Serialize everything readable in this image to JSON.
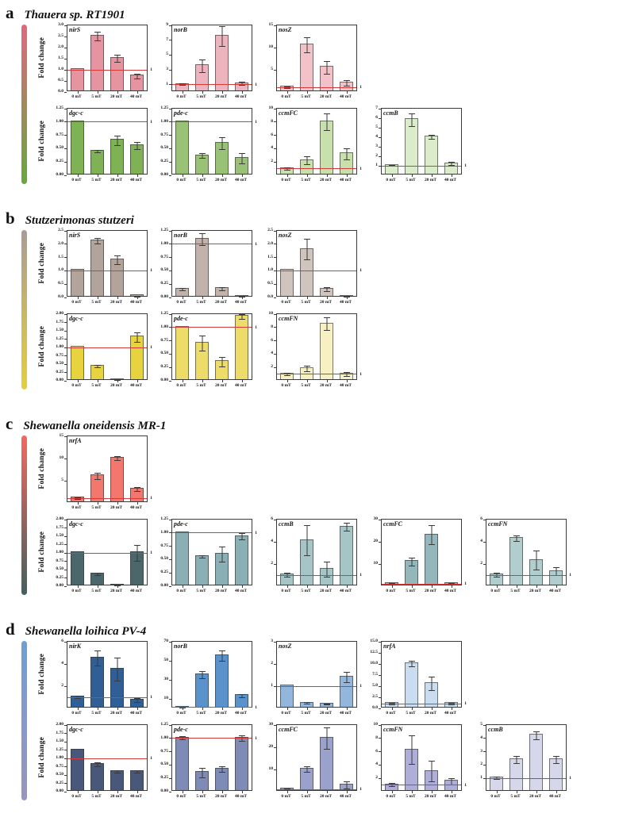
{
  "figure": {
    "ylabel": "Fold change",
    "xticks": [
      "0 mT",
      "5 mT",
      "20 mT",
      "40 mT"
    ],
    "ref_line_value": 1,
    "ref_line_label": "1",
    "ref_line_color": "#d43c3c",
    "background": "#ffffff"
  },
  "panels": [
    {
      "id": "a",
      "letter": "a",
      "title": "Thauera sp. RT1901",
      "gradient_top": "#e0687e",
      "gradient_bottom": "#66a93c"
    },
    {
      "id": "b",
      "letter": "b",
      "title": "Stutzerimonas stutzeri",
      "gradient_top": "#ab9c94",
      "gradient_bottom": "#e6cf3a"
    },
    {
      "id": "c",
      "letter": "c",
      "title": "Shewanella oneidensis MR-1",
      "gradient_top": "#f4685e",
      "gradient_bottom": "#42605f"
    },
    {
      "id": "d",
      "letter": "d",
      "title": "Shewanella loihica PV-4",
      "gradient_top": "#6f9fd4",
      "gradient_bottom": "#9995bf"
    }
  ],
  "chart_data": {
    "type": "bar",
    "categories": [
      "0 mT",
      "5 mT",
      "20 mT",
      "40 mT"
    ],
    "ylabel": "Fold change",
    "reference_line": 1,
    "charts": [
      {
        "panel": "a",
        "row": 0,
        "gene": "nirS",
        "ylim": [
          0,
          3
        ],
        "yticks": [
          "0.0",
          "0.5",
          "1.0",
          "1.5",
          "2.0",
          "2.5",
          "3.0"
        ],
        "values": [
          1.0,
          2.5,
          1.5,
          0.7
        ],
        "errors": [
          0,
          0.2,
          0.18,
          0.12
        ],
        "color": "#e695a0",
        "ylabel": true
      },
      {
        "panel": "a",
        "row": 0,
        "gene": "norB",
        "ylim": [
          0,
          9
        ],
        "yticks": [
          "1",
          "3",
          "5",
          "7",
          "9"
        ],
        "values": [
          1,
          3.5,
          7.5,
          1.1
        ],
        "errors": [
          0.15,
          0.9,
          1.4,
          0.25
        ],
        "color": "#eeb4bd"
      },
      {
        "panel": "a",
        "row": 0,
        "gene": "nosZ",
        "ylim": [
          0,
          15
        ],
        "yticks": [
          "5",
          "10",
          "15"
        ],
        "values": [
          1,
          10.5,
          5.5,
          2
        ],
        "errors": [
          0.2,
          1.8,
          1.5,
          0.7
        ],
        "color": "#f3c2c9"
      },
      {
        "panel": "a",
        "row": 1,
        "gene": "dgc-c",
        "ylim": [
          0,
          1.25
        ],
        "yticks": [
          "0.00",
          "0.25",
          "0.50",
          "0.75",
          "1.00",
          "1.25"
        ],
        "values": [
          1.0,
          0.44,
          0.65,
          0.55
        ],
        "errors": [
          0,
          0.03,
          0.1,
          0.07
        ],
        "color": "#7eb254",
        "ylabel": true
      },
      {
        "panel": "a",
        "row": 1,
        "gene": "pde-c",
        "ylim": [
          0,
          1.25
        ],
        "yticks": [
          "0.00",
          "0.25",
          "0.50",
          "0.75",
          "1.00",
          "1.25"
        ],
        "values": [
          1.0,
          0.36,
          0.6,
          0.31
        ],
        "errors": [
          0,
          0.05,
          0.12,
          0.1
        ],
        "color": "#99c276"
      },
      {
        "panel": "a",
        "row": 1,
        "gene": "ccmFC",
        "ylim": [
          0,
          10
        ],
        "yticks": [
          "2",
          "4",
          "6",
          "8",
          "10"
        ],
        "values": [
          1,
          2.2,
          8,
          3.2
        ],
        "errors": [
          0.25,
          0.6,
          1.3,
          0.9
        ],
        "color": "#c8e0ac"
      },
      {
        "panel": "a",
        "row": 1,
        "gene": "ccmB",
        "ylim": [
          0,
          7
        ],
        "yticks": [
          "1",
          "2",
          "3",
          "4",
          "5",
          "6",
          "7"
        ],
        "values": [
          1,
          5.8,
          4,
          1.2
        ],
        "errors": [
          0.12,
          0.7,
          0.25,
          0.2
        ],
        "color": "#daecca"
      },
      {
        "panel": "b",
        "row": 0,
        "gene": "nirS",
        "ylim": [
          0,
          2.5
        ],
        "yticks": [
          "0.0",
          "0.5",
          "1.0",
          "1.5",
          "2.0",
          "2.5"
        ],
        "values": [
          1.0,
          2.1,
          1.4,
          0.05
        ],
        "errors": [
          0,
          0.12,
          0.18,
          0.02
        ],
        "color": "#b2a39b",
        "ylabel": true
      },
      {
        "panel": "b",
        "row": 0,
        "gene": "norB",
        "ylim": [
          0,
          1.25
        ],
        "yticks": [
          "0.00",
          "0.25",
          "0.50",
          "0.75",
          "1.00",
          "1.25"
        ],
        "values": [
          0.15,
          1.08,
          0.16,
          0.02
        ],
        "errors": [
          0.03,
          0.12,
          0.04,
          0.01
        ],
        "color": "#c1b3ac"
      },
      {
        "panel": "b",
        "row": 0,
        "gene": "nosZ",
        "ylim": [
          0,
          2.5
        ],
        "yticks": [
          "0.0",
          "0.5",
          "1.0",
          "1.5",
          "2.0",
          "2.5"
        ],
        "values": [
          1.0,
          1.8,
          0.3,
          0.04
        ],
        "errors": [
          0,
          0.4,
          0.1,
          0.02
        ],
        "color": "#cfc4be"
      },
      {
        "panel": "b",
        "row": 1,
        "gene": "dgc-c",
        "ylim": [
          0,
          2
        ],
        "yticks": [
          "0.00",
          "0.25",
          "0.50",
          "0.75",
          "1.00",
          "1.25",
          "1.50",
          "1.75",
          "2.00"
        ],
        "values": [
          1.0,
          0.42,
          0.03,
          1.3
        ],
        "errors": [
          0,
          0.05,
          0.01,
          0.15
        ],
        "color": "#e7d33e",
        "ylabel": true
      },
      {
        "panel": "b",
        "row": 1,
        "gene": "pde-c",
        "ylim": [
          0,
          1.25
        ],
        "yticks": [
          "0.00",
          "0.25",
          "0.50",
          "0.75",
          "1.00",
          "1.25"
        ],
        "values": [
          1.0,
          0.7,
          0.35,
          1.2
        ],
        "errors": [
          0,
          0.15,
          0.1,
          0.05
        ],
        "color": "#eddc68"
      },
      {
        "panel": "b",
        "row": 1,
        "gene": "ccmFN",
        "ylim": [
          0,
          10
        ],
        "yticks": [
          "2",
          "4",
          "6",
          "8",
          "10"
        ],
        "values": [
          1,
          1.8,
          8.5,
          1
        ],
        "errors": [
          0.25,
          0.5,
          1,
          0.35
        ],
        "color": "#f6f0c2"
      },
      {
        "panel": "c",
        "row": 0,
        "gene": "nrfA",
        "ylim": [
          0,
          15
        ],
        "yticks": [
          "5",
          "10",
          "15"
        ],
        "values": [
          1,
          6,
          10,
          3
        ],
        "errors": [
          0.2,
          0.8,
          0.5,
          0.5
        ],
        "color": "#f4776d",
        "ylabel": true
      },
      {
        "panel": "c",
        "row": 1,
        "gene": "dgc-c",
        "ylim": [
          0,
          2
        ],
        "yticks": [
          "0.00",
          "0.25",
          "0.50",
          "0.75",
          "1.00",
          "1.25",
          "1.50",
          "1.75",
          "2.00"
        ],
        "values": [
          1.0,
          0.35,
          0.03,
          1.0
        ],
        "errors": [
          0,
          0.05,
          0.01,
          0.25
        ],
        "color": "#4c676c",
        "ylabel": true
      },
      {
        "panel": "c",
        "row": 1,
        "gene": "pde-c",
        "ylim": [
          0,
          1.25
        ],
        "yticks": [
          "0.00",
          "0.25",
          "0.50",
          "0.75",
          "1.00",
          "1.25"
        ],
        "values": [
          1.0,
          0.55,
          0.6,
          0.93
        ],
        "errors": [
          0,
          0.03,
          0.15,
          0.07
        ],
        "color": "#8aafb4"
      },
      {
        "panel": "c",
        "row": 1,
        "gene": "ccmB",
        "ylim": [
          0,
          6
        ],
        "yticks": [
          "2",
          "4",
          "6"
        ],
        "values": [
          1,
          4.1,
          1.5,
          5.3
        ],
        "errors": [
          0.2,
          1.4,
          0.7,
          0.4
        ],
        "color": "#a5c5c7"
      },
      {
        "panel": "c",
        "row": 1,
        "gene": "ccmFC",
        "ylim": [
          0,
          30
        ],
        "yticks": [
          "10",
          "20",
          "30"
        ],
        "values": [
          1,
          11,
          23,
          1
        ],
        "errors": [
          0.3,
          2,
          4.5,
          0.4
        ],
        "color": "#93b7ba"
      },
      {
        "panel": "c",
        "row": 1,
        "gene": "ccmFN",
        "ylim": [
          0,
          6
        ],
        "yticks": [
          "2",
          "4",
          "6"
        ],
        "values": [
          1,
          4.3,
          2.3,
          1.3
        ],
        "errors": [
          0.2,
          0.3,
          0.9,
          0.4
        ],
        "color": "#b2cdce"
      },
      {
        "panel": "d",
        "row": 0,
        "gene": "nirK",
        "ylim": [
          0,
          6
        ],
        "yticks": [
          "2",
          "4",
          "6"
        ],
        "values": [
          1,
          4.5,
          3.5,
          0.7
        ],
        "errors": [
          0.15,
          0.7,
          1.1,
          0.2
        ],
        "color": "#2f5f95",
        "ylabel": true
      },
      {
        "panel": "d",
        "row": 0,
        "gene": "norB",
        "ylim": [
          0,
          70
        ],
        "yticks": [
          "10",
          "30",
          "50",
          "70"
        ],
        "values": [
          1,
          35,
          55,
          13
        ],
        "errors": [
          0.5,
          4,
          6,
          2
        ],
        "color": "#5a92cb"
      },
      {
        "panel": "d",
        "row": 0,
        "gene": "nosZ",
        "ylim": [
          0,
          3
        ],
        "yticks": [
          "1",
          "2",
          "3"
        ],
        "values": [
          1,
          0.22,
          0.18,
          1.4
        ],
        "errors": [
          0,
          0.05,
          0.05,
          0.25
        ],
        "color": "#93b6dd"
      },
      {
        "panel": "d",
        "row": 0,
        "gene": "nrfA",
        "ylim": [
          0,
          15
        ],
        "yticks": [
          "0.0",
          "2.5",
          "5.0",
          "7.5",
          "10.0",
          "12.5",
          "15.0"
        ],
        "values": [
          1,
          10,
          5.5,
          1
        ],
        "errors": [
          0.3,
          0.8,
          1.6,
          0.3
        ],
        "color": "#cadcf0"
      },
      {
        "panel": "d",
        "row": 1,
        "gene": "dgc-c",
        "ylim": [
          0,
          2
        ],
        "yticks": [
          "0.00",
          "0.25",
          "0.50",
          "0.75",
          "1.00",
          "1.25",
          "1.50",
          "1.75",
          "2.00"
        ],
        "values": [
          1.25,
          0.8,
          0.6,
          0.6
        ],
        "errors": [
          0,
          0.07,
          0.05,
          0.05
        ],
        "color": "#47587b",
        "ylabel": true
      },
      {
        "panel": "d",
        "row": 1,
        "gene": "pde-c",
        "ylim": [
          0,
          1.25
        ],
        "yticks": [
          "0.00",
          "0.25",
          "0.50",
          "0.75",
          "1.00",
          "1.25"
        ],
        "values": [
          1.0,
          0.35,
          0.42,
          1.0
        ],
        "errors": [
          0.04,
          0.1,
          0.06,
          0.06
        ],
        "color": "#7e8bb6"
      },
      {
        "panel": "d",
        "row": 1,
        "gene": "ccmFC",
        "ylim": [
          0,
          30
        ],
        "yticks": [
          "10",
          "20",
          "30"
        ],
        "values": [
          1,
          10,
          24,
          3
        ],
        "errors": [
          0.4,
          1.5,
          5,
          1.8
        ],
        "color": "#9aa2cc"
      },
      {
        "panel": "d",
        "row": 1,
        "gene": "ccmFN",
        "ylim": [
          0,
          10
        ],
        "yticks": [
          "2",
          "4",
          "6",
          "8",
          "10"
        ],
        "values": [
          1,
          6.2,
          3,
          1.5
        ],
        "errors": [
          0.3,
          2.2,
          1.6,
          0.5
        ],
        "color": "#aeaed9"
      },
      {
        "panel": "d",
        "row": 1,
        "gene": "ccmB",
        "ylim": [
          0,
          5
        ],
        "yticks": [
          "1",
          "2",
          "3",
          "4",
          "5"
        ],
        "values": [
          1,
          2.4,
          4.2,
          2.4
        ],
        "errors": [
          0.12,
          0.3,
          0.35,
          0.3
        ],
        "color": "#d6d7eb"
      }
    ]
  }
}
